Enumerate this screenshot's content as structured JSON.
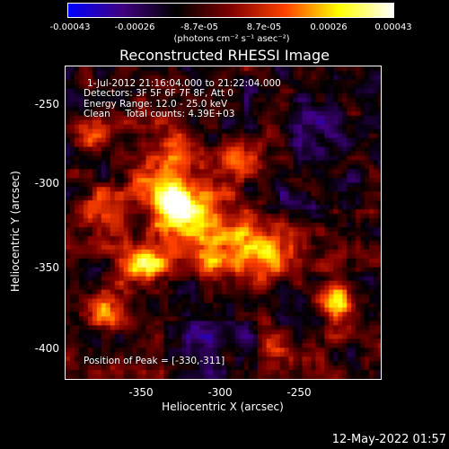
{
  "colorbar": {
    "ticks": [
      "-0.00043",
      "-0.00026",
      "-8.7e-05",
      "8.7e-05",
      "0.00026",
      "0.00043"
    ],
    "unit": "(photons cm⁻² s⁻¹ asec⁻²)",
    "colors": [
      "#0000ff",
      "#400080",
      "#000000",
      "#800000",
      "#ff4000",
      "#ffff00",
      "#ffffff"
    ]
  },
  "title": "Reconstructed RHESSI Image",
  "info": {
    "line1": "1-Jul-2012 21:16:04.000 to 21:22:04.000",
    "line2": "Detectors: 3F 5F 6F 7F 8F, Att 0",
    "line3": "Energy Range: 12.0 - 25.0 keV",
    "line4": "Clean     Total counts: 4.39E+03",
    "peak": "Position of Peak = [-330,-311]"
  },
  "axes": {
    "xlabel": "Heliocentric X (arcsec)",
    "ylabel": "Heliocentric Y (arcsec)",
    "xticks": [
      "-350",
      "-300",
      "-250"
    ],
    "yticks": [
      "-250",
      "-300",
      "-350",
      "-400"
    ]
  },
  "timestamp": "12-May-2022 01:57"
}
